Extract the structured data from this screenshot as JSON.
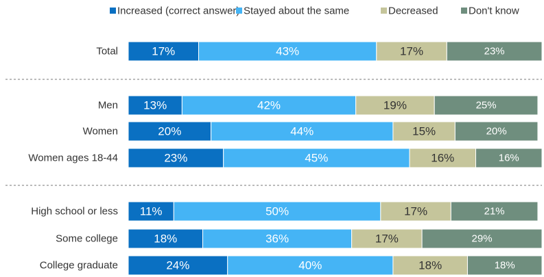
{
  "chart_data": {
    "type": "stacked-bar-horizontal",
    "categories": [
      "Total",
      "Men",
      "Women",
      "Women ages 18-44",
      "High school or less",
      "Some college",
      "College graduate"
    ],
    "series": [
      {
        "name": "Increased (correct answer)",
        "color": "#0a70c2",
        "values": [
          17,
          13,
          20,
          23,
          11,
          18,
          24
        ],
        "value_labels": [
          "17%",
          "13%",
          "20%",
          "23%",
          "11%",
          "18%",
          "24%"
        ]
      },
      {
        "name": "Stayed about the same",
        "color": "#45b4f5",
        "values": [
          43,
          42,
          44,
          45,
          50,
          36,
          40
        ],
        "value_labels": [
          "43%",
          "42%",
          "44%",
          "45%",
          "50%",
          "36%",
          "40%"
        ]
      },
      {
        "name": "Decreased",
        "color": "#c5c59b",
        "values": [
          17,
          19,
          15,
          16,
          17,
          17,
          18
        ],
        "value_labels": [
          "17%",
          "19%",
          "15%",
          "16%",
          "17%",
          "17%",
          "18%"
        ]
      },
      {
        "name": "Don't know",
        "color": "#6f8e7e",
        "values": [
          23,
          25,
          20,
          16,
          21,
          29,
          18
        ],
        "value_labels": [
          "23%",
          "25%",
          "20%",
          "16%",
          "21%",
          "29%",
          "18%"
        ]
      }
    ]
  }
}
